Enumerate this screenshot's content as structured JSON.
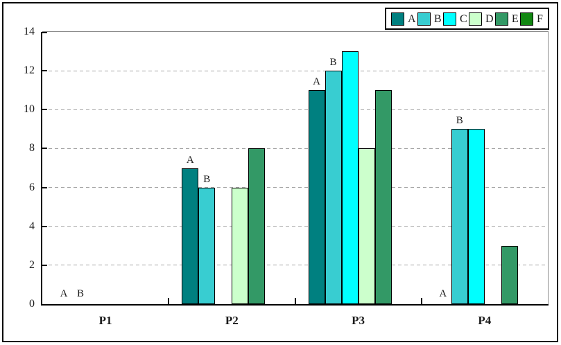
{
  "chart_data": {
    "type": "bar",
    "title": "",
    "categories": [
      "P1",
      "P2",
      "P3",
      "P4"
    ],
    "series": [
      {
        "name": "A",
        "color": "#008080",
        "values": [
          0,
          7,
          11,
          0
        ]
      },
      {
        "name": "B",
        "color": "#38CDD1",
        "values": [
          0,
          6,
          12,
          9
        ]
      },
      {
        "name": "C",
        "color": "#00FFFF",
        "values": [
          0,
          0,
          13,
          9
        ]
      },
      {
        "name": "D",
        "color": "#CCFFCC",
        "values": [
          0,
          6,
          8,
          0
        ]
      },
      {
        "name": "E",
        "color": "#339966",
        "values": [
          0,
          8,
          11,
          3
        ]
      },
      {
        "name": "F",
        "color": "#128712",
        "values": [
          0,
          0,
          0,
          0
        ]
      }
    ],
    "labeled_series": [
      "A",
      "B"
    ],
    "xlabel": "",
    "ylabel": "",
    "ylim": [
      0,
      14
    ],
    "yticks": [
      0,
      2,
      4,
      6,
      8,
      10,
      12,
      14
    ],
    "grid": "horizontal-dashed",
    "legend": {
      "position": "top-right",
      "entries": [
        "A",
        "B",
        "C",
        "D",
        "E",
        "F"
      ]
    },
    "colors": {
      "axis": "#000000",
      "grid": "#a3a3a3",
      "plot_border": "#8c8c8c"
    }
  }
}
